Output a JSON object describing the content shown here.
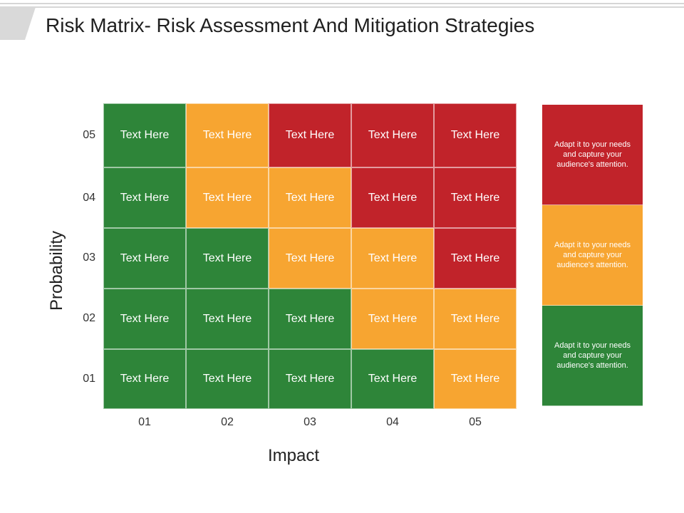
{
  "title": "Risk Matrix- Risk Assessment And Mitigation Strategies",
  "colors": {
    "green": "#2e8539",
    "orange": "#f7a531",
    "red": "#c1232a"
  },
  "axes": {
    "y_title": "Probability",
    "x_title": "Impact",
    "y_ticks": [
      "05",
      "04",
      "03",
      "02",
      "01"
    ],
    "x_ticks": [
      "01",
      "02",
      "03",
      "04",
      "05"
    ]
  },
  "matrix": {
    "rows": [
      {
        "cells": [
          {
            "text": "Text Here",
            "level": "green"
          },
          {
            "text": "Text Here",
            "level": "orange"
          },
          {
            "text": "Text Here",
            "level": "red"
          },
          {
            "text": "Text Here",
            "level": "red"
          },
          {
            "text": "Text Here",
            "level": "red"
          }
        ]
      },
      {
        "cells": [
          {
            "text": "Text Here",
            "level": "green"
          },
          {
            "text": "Text Here",
            "level": "orange"
          },
          {
            "text": "Text Here",
            "level": "orange"
          },
          {
            "text": "Text Here",
            "level": "red"
          },
          {
            "text": "Text Here",
            "level": "red"
          }
        ]
      },
      {
        "cells": [
          {
            "text": "Text Here",
            "level": "green"
          },
          {
            "text": "Text Here",
            "level": "green"
          },
          {
            "text": "Text Here",
            "level": "orange"
          },
          {
            "text": "Text Here",
            "level": "orange"
          },
          {
            "text": "Text Here",
            "level": "red"
          }
        ]
      },
      {
        "cells": [
          {
            "text": "Text Here",
            "level": "green"
          },
          {
            "text": "Text Here",
            "level": "green"
          },
          {
            "text": "Text Here",
            "level": "green"
          },
          {
            "text": "Text Here",
            "level": "orange"
          },
          {
            "text": "Text Here",
            "level": "orange"
          }
        ]
      },
      {
        "cells": [
          {
            "text": "Text Here",
            "level": "green"
          },
          {
            "text": "Text Here",
            "level": "green"
          },
          {
            "text": "Text Here",
            "level": "green"
          },
          {
            "text": "Text Here",
            "level": "green"
          },
          {
            "text": "Text Here",
            "level": "orange"
          }
        ]
      }
    ]
  },
  "legend": [
    {
      "text": "Adapt it to your needs and capture your audience's attention.",
      "level": "red"
    },
    {
      "text": "Adapt it to your needs and capture your audience's attention.",
      "level": "orange"
    },
    {
      "text": "Adapt it to your needs and capture your audience's attention.",
      "level": "green"
    }
  ]
}
